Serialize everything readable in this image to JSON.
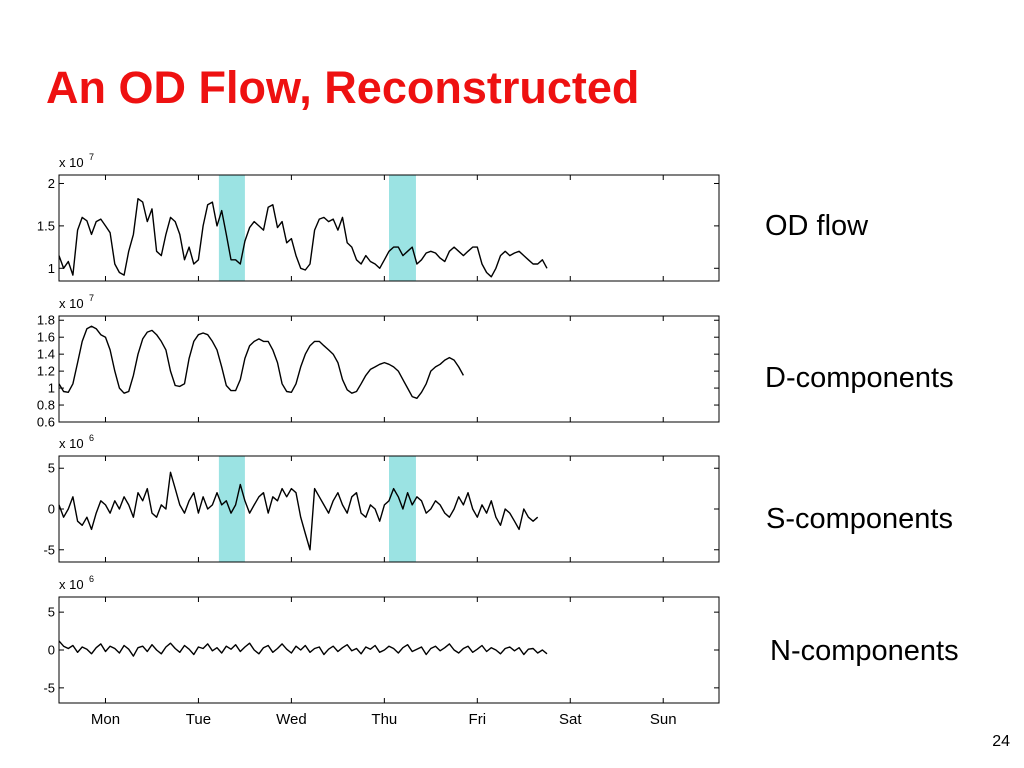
{
  "slide": {
    "title": "An OD Flow, Reconstructed",
    "page_number": "24"
  },
  "chart_data": [
    {
      "type": "line",
      "label": "OD flow",
      "scale_exponent": "7",
      "scale_text": "x 10",
      "ylim": [
        0.85,
        2.1
      ],
      "yticks": [
        1,
        1.5,
        2
      ],
      "ytick_labels": [
        "1",
        "1.5",
        "2"
      ],
      "highlight_ranges": [
        [
          1.22,
          1.5
        ],
        [
          3.05,
          3.34
        ]
      ],
      "x_step": 0.05,
      "values": [
        1.15,
        1.0,
        1.08,
        0.92,
        1.45,
        1.6,
        1.56,
        1.4,
        1.55,
        1.58,
        1.5,
        1.42,
        1.05,
        0.95,
        0.92,
        1.2,
        1.4,
        1.82,
        1.78,
        1.55,
        1.7,
        1.2,
        1.15,
        1.4,
        1.6,
        1.55,
        1.4,
        1.1,
        1.25,
        1.05,
        1.1,
        1.5,
        1.75,
        1.78,
        1.5,
        1.68,
        1.4,
        1.1,
        1.1,
        1.05,
        1.32,
        1.48,
        1.55,
        1.5,
        1.45,
        1.72,
        1.75,
        1.48,
        1.55,
        1.3,
        1.35,
        1.15,
        1.0,
        0.98,
        1.05,
        1.45,
        1.58,
        1.6,
        1.55,
        1.58,
        1.45,
        1.6,
        1.3,
        1.25,
        1.1,
        1.05,
        1.15,
        1.08,
        1.05,
        1.0,
        1.1,
        1.2,
        1.25,
        1.25,
        1.15,
        1.2,
        1.25,
        1.05,
        1.1,
        1.18,
        1.2,
        1.18,
        1.12,
        1.08,
        1.2,
        1.25,
        1.2,
        1.15,
        1.2,
        1.25,
        1.25,
        1.05,
        0.95,
        0.9,
        1.0,
        1.15,
        1.2,
        1.15,
        1.18,
        1.2,
        1.15,
        1.1,
        1.05,
        1.05,
        1.1,
        1.0
      ]
    },
    {
      "type": "line",
      "label": "D-components",
      "scale_exponent": "7",
      "scale_text": "x 10",
      "ylim": [
        0.6,
        1.85
      ],
      "yticks": [
        0.6,
        0.8,
        1,
        1.2,
        1.4,
        1.6,
        1.8
      ],
      "ytick_labels": [
        "0.6",
        "0.8",
        "1",
        "1.2",
        "1.4",
        "1.6",
        "1.8"
      ],
      "highlight_ranges": [],
      "x_step": 0.05,
      "values": [
        1.05,
        0.96,
        0.95,
        1.05,
        1.3,
        1.55,
        1.7,
        1.73,
        1.7,
        1.63,
        1.6,
        1.45,
        1.2,
        1.0,
        0.94,
        0.96,
        1.15,
        1.4,
        1.58,
        1.66,
        1.68,
        1.63,
        1.55,
        1.45,
        1.2,
        1.03,
        1.02,
        1.05,
        1.35,
        1.55,
        1.63,
        1.65,
        1.63,
        1.55,
        1.45,
        1.25,
        1.03,
        0.97,
        0.97,
        1.1,
        1.35,
        1.5,
        1.55,
        1.58,
        1.55,
        1.55,
        1.45,
        1.3,
        1.05,
        0.96,
        0.95,
        1.05,
        1.25,
        1.4,
        1.5,
        1.55,
        1.55,
        1.5,
        1.45,
        1.4,
        1.3,
        1.1,
        0.98,
        0.94,
        0.96,
        1.05,
        1.15,
        1.22,
        1.25,
        1.28,
        1.3,
        1.28,
        1.25,
        1.2,
        1.1,
        1.0,
        0.9,
        0.88,
        0.95,
        1.05,
        1.2,
        1.25,
        1.28,
        1.33,
        1.36,
        1.33,
        1.25,
        1.15
      ]
    },
    {
      "type": "line",
      "label": "S-components",
      "scale_exponent": "6",
      "scale_text": "x 10",
      "ylim": [
        -6.5,
        6.5
      ],
      "yticks": [
        -5,
        0,
        5
      ],
      "ytick_labels": [
        "-5",
        "0",
        "5"
      ],
      "highlight_ranges": [
        [
          1.22,
          1.5
        ],
        [
          3.05,
          3.34
        ]
      ],
      "x_step": 0.05,
      "values": [
        0.5,
        -1.0,
        0.0,
        1.5,
        -1.5,
        -2.0,
        -1.0,
        -2.5,
        -0.5,
        1.0,
        0.5,
        -0.5,
        1.0,
        0.0,
        1.5,
        0.5,
        -1.0,
        2.0,
        1.0,
        2.5,
        -0.5,
        -1.0,
        0.5,
        0.0,
        4.5,
        2.5,
        0.5,
        -0.5,
        1.0,
        2.0,
        -0.5,
        1.5,
        0.0,
        0.5,
        2.0,
        0.5,
        1.0,
        -0.5,
        0.5,
        3.0,
        1.0,
        -0.5,
        0.5,
        1.5,
        2.0,
        -0.5,
        1.5,
        1.0,
        2.5,
        1.5,
        2.5,
        2.0,
        -1.0,
        -3.0,
        -5.0,
        2.5,
        1.5,
        0.5,
        -0.5,
        1.0,
        2.0,
        0.5,
        -0.5,
        1.5,
        2.0,
        -0.5,
        -1.0,
        0.5,
        0.0,
        -1.5,
        0.5,
        1.0,
        2.5,
        1.5,
        0.0,
        2.0,
        0.5,
        1.5,
        1.0,
        -0.5,
        0.0,
        1.0,
        0.5,
        -0.5,
        -1.0,
        0.0,
        1.5,
        0.5,
        2.0,
        0.0,
        -1.0,
        0.5,
        -0.5,
        1.0,
        -1.0,
        -2.0,
        0.0,
        -0.5,
        -1.5,
        -2.5,
        0.0,
        -1.0,
        -1.5,
        -1.0
      ]
    },
    {
      "type": "line",
      "label": "N-components",
      "scale_exponent": "6",
      "scale_text": "x 10",
      "ylim": [
        -7,
        7
      ],
      "yticks": [
        -5,
        0,
        5
      ],
      "ytick_labels": [
        "-5",
        "0",
        "5"
      ],
      "highlight_ranges": [],
      "x_step": 0.05,
      "values": [
        1.2,
        0.5,
        0.2,
        0.6,
        -0.3,
        0.4,
        0.1,
        -0.5,
        0.3,
        0.8,
        -0.2,
        0.5,
        0.2,
        -0.4,
        0.6,
        0.1,
        -0.8,
        0.3,
        0.5,
        -0.2,
        0.7,
        0.0,
        -0.5,
        0.4,
        0.9,
        0.2,
        -0.3,
        0.6,
        0.1,
        -0.6,
        0.4,
        0.2,
        0.8,
        -0.1,
        0.3,
        -0.4,
        0.5,
        0.1,
        0.7,
        -0.2,
        0.4,
        0.9,
        0.0,
        -0.5,
        0.3,
        0.6,
        -0.3,
        0.2,
        0.8,
        0.1,
        -0.4,
        0.5,
        0.0,
        0.6,
        -0.3,
        0.2,
        0.4,
        -0.6,
        0.1,
        0.5,
        -0.2,
        0.3,
        0.7,
        -0.1,
        0.2,
        -0.5,
        0.4,
        0.1,
        0.6,
        -0.3,
        0.0,
        0.5,
        0.2,
        -0.4,
        0.3,
        0.7,
        -0.2,
        0.1,
        0.4,
        -0.6,
        0.2,
        0.5,
        -0.1,
        0.3,
        0.8,
        0.0,
        -0.4,
        0.2,
        0.5,
        -0.3,
        0.1,
        0.6,
        -0.2,
        0.3,
        0.0,
        -0.5,
        0.2,
        0.4,
        -0.1,
        0.3,
        -0.6,
        0.1,
        0.2,
        -0.4,
        0.0,
        -0.5
      ]
    }
  ],
  "xaxis": {
    "categories": [
      "Mon",
      "Tue",
      "Wed",
      "Thu",
      "Fri",
      "Sat",
      "Sun"
    ],
    "xlim": [
      -0.5,
      6.6
    ]
  },
  "colors": {
    "title": "#ee1111",
    "line": "#000000",
    "highlight": "#9be3e3"
  }
}
